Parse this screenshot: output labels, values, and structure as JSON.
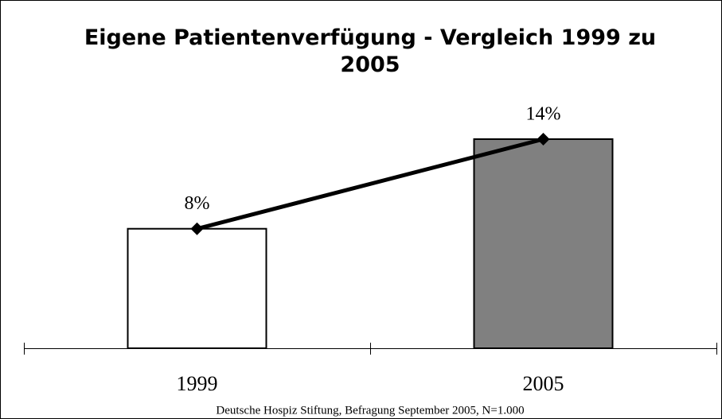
{
  "chart_data": {
    "type": "bar",
    "title": "Eigene Patientenverfügung - Vergleich 1999 zu 2005",
    "categories": [
      "1999",
      "2005"
    ],
    "values": [
      8,
      14
    ],
    "value_labels": [
      "8%",
      "14%"
    ],
    "colors": [
      "#ffffff",
      "#808080"
    ],
    "line_color": "#000000",
    "source": "Deutsche Hospiz Stiftung, Befragung September 2005, N=1.000"
  }
}
